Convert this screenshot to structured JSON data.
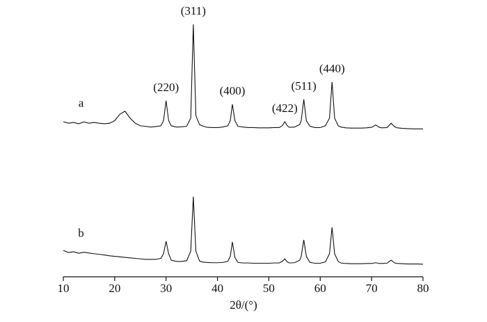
{
  "chart_data": {
    "type": "line",
    "x_label": "2θ/(°)",
    "xlim": [
      10,
      80
    ],
    "xticks": [
      10,
      20,
      30,
      40,
      50,
      60,
      70,
      80
    ],
    "ylim": [
      0,
      100
    ],
    "color": "#111111",
    "x": [
      10,
      11,
      12,
      13,
      14,
      15,
      16,
      17,
      18,
      19,
      20,
      21,
      22,
      23,
      24,
      25,
      26,
      27,
      28,
      29,
      29.5,
      30,
      30.5,
      31,
      32,
      33,
      34,
      34.8,
      35.3,
      35.8,
      36.5,
      37,
      38,
      39,
      40,
      41,
      42,
      42.5,
      42.9,
      43.4,
      44,
      45,
      46,
      47,
      48,
      49,
      50,
      51,
      52,
      52.6,
      53.1,
      53.6,
      54,
      55,
      56,
      56.3,
      56.8,
      57.3,
      58,
      59,
      60,
      61,
      61.8,
      62.3,
      62.8,
      63.5,
      64,
      65,
      66,
      67,
      68,
      69,
      70,
      70.8,
      71.5,
      72,
      73,
      73.8,
      74.5,
      75,
      76,
      77,
      78,
      79,
      80
    ],
    "series": [
      {
        "name": "a",
        "color": "#111111",
        "values": [
          60.6,
          60,
          60.3,
          59.8,
          60.5,
          60,
          60.3,
          60,
          59.8,
          60,
          61,
          63.5,
          64.7,
          62,
          60,
          59,
          58.8,
          58.5,
          58.7,
          59,
          61,
          68.8,
          61,
          59,
          58.5,
          58.6,
          58.8,
          62,
          98.6,
          63,
          59.5,
          59,
          58.4,
          58.3,
          58.3,
          58.5,
          59,
          61,
          67.4,
          61,
          58.8,
          58.5,
          58.3,
          58.3,
          58.2,
          58.2,
          58.2,
          58.3,
          58.3,
          59,
          60.6,
          59,
          58.4,
          58.5,
          59.5,
          61,
          69.3,
          61,
          58.8,
          58.3,
          58.3,
          59,
          62,
          76.1,
          62,
          59,
          58.5,
          58.2,
          58.1,
          58.1,
          58.1,
          58.2,
          58.4,
          59.3,
          58.4,
          58.2,
          58.3,
          60,
          58.6,
          58.2,
          58,
          57.9,
          57.8,
          57.8,
          57.8
        ]
      },
      {
        "name": "b",
        "color": "#111111",
        "values": [
          10.3,
          9.5,
          9.8,
          9.2,
          9.6,
          9.3,
          9,
          8.8,
          8.5,
          8.2,
          8,
          7.8,
          7.6,
          7.4,
          7.2,
          7,
          6.8,
          6.8,
          6.8,
          7.2,
          9,
          13.9,
          9,
          6.5,
          6,
          6,
          6.3,
          10,
          31.3,
          10,
          6.2,
          5.8,
          5.6,
          5.5,
          5.5,
          5.6,
          6,
          8,
          13.6,
          7.5,
          5.6,
          5.4,
          5.4,
          5.3,
          5.3,
          5.3,
          5.3,
          5.4,
          5.4,
          6,
          7,
          5.8,
          5.4,
          5.5,
          6.5,
          8,
          14.4,
          8,
          5.6,
          5.3,
          5.3,
          5.8,
          9,
          19.3,
          9,
          6,
          5.4,
          5.2,
          5.1,
          5.1,
          5.1,
          5.2,
          5.2,
          5.5,
          5.2,
          5.2,
          5.3,
          6.5,
          5.4,
          5.2,
          5.1,
          5,
          5,
          5,
          4.9
        ]
      }
    ],
    "annotations": [
      {
        "text": "(220)",
        "x": 30
      },
      {
        "text": "(311)",
        "x": 35.3
      },
      {
        "text": "(400)",
        "x": 42.9
      },
      {
        "text": "(422)",
        "x": 53.1
      },
      {
        "text": "(511)",
        "x": 56.8
      },
      {
        "text": "(440)",
        "x": 62.3
      }
    ]
  }
}
